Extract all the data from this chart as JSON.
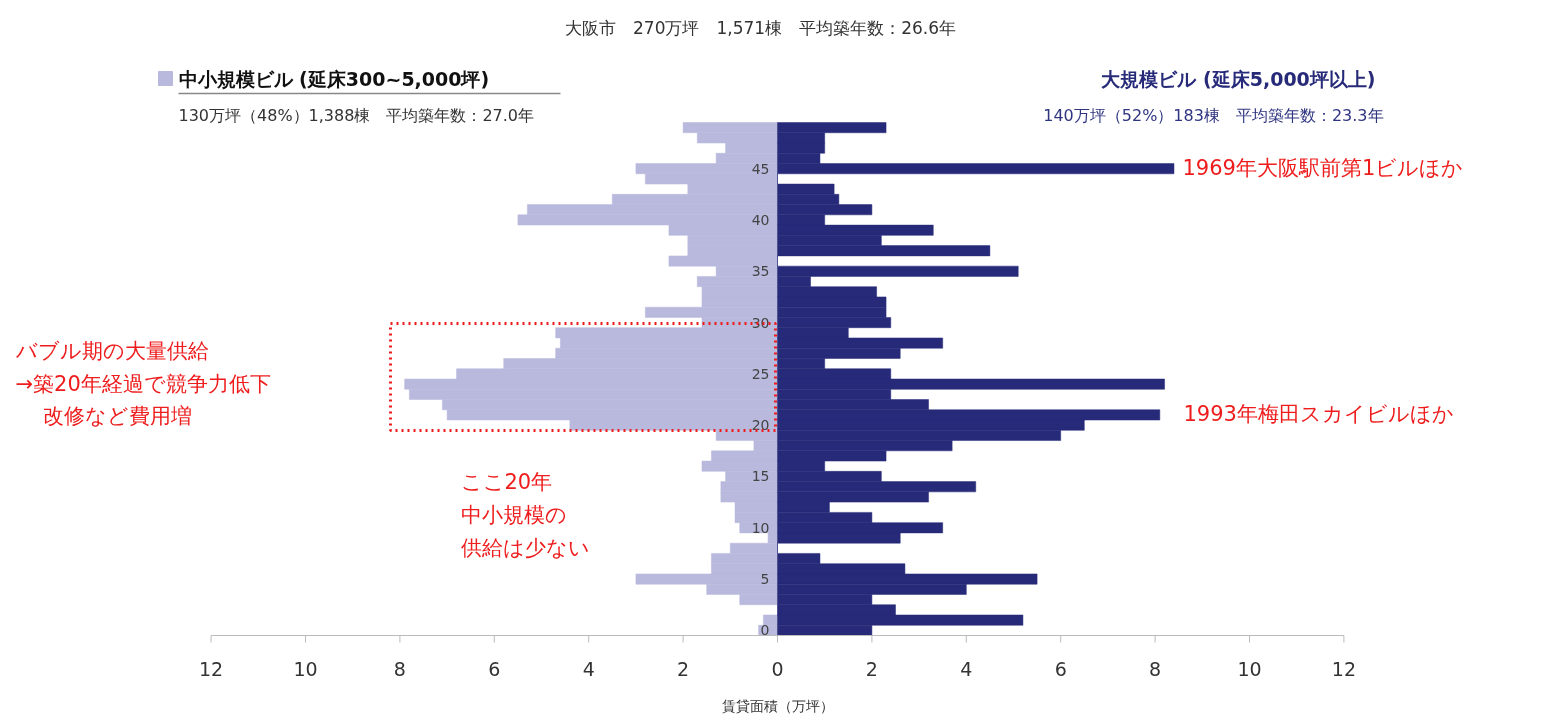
{
  "chart_data": {
    "type": "bar",
    "orientation": "horizontal",
    "stacked": true,
    "title": "大阪市　270万坪　1,571棟　平均築年数：26.6年",
    "xlabel": "賃貸面積（万坪）",
    "categories": [
      null,
      null,
      null,
      null,
      "45",
      null,
      null,
      null,
      null,
      "40",
      null,
      null,
      null,
      null,
      "35",
      null,
      null,
      null,
      null,
      "30",
      null,
      null,
      null,
      null,
      "25",
      null,
      null,
      null,
      null,
      "20",
      null,
      null,
      null,
      null,
      "15",
      null,
      null,
      null,
      null,
      "10",
      null,
      null,
      null,
      null,
      "5",
      null,
      null,
      null,
      null,
      "0"
    ],
    "series": [
      {
        "name": "中小規模ビル (延床300~5,000坪)",
        "color": "#b8b9dd",
        "values": [
          -2.0,
          -1.7,
          -1.1,
          -1.3,
          -3.0,
          -2.8,
          -1.9,
          -3.5,
          -5.3,
          -5.5,
          -2.3,
          -1.9,
          -1.9,
          -2.3,
          -1.3,
          -1.7,
          -1.6,
          -1.6,
          -2.8,
          -1.6,
          -4.7,
          -4.6,
          -4.7,
          -5.8,
          -6.8,
          -7.9,
          -7.8,
          -7.1,
          -7.0,
          -4.4,
          -1.3,
          -0.5,
          -1.4,
          -1.6,
          -1.1,
          -1.2,
          -1.2,
          -0.9,
          -0.9,
          -0.8,
          -0.2,
          -1.0,
          -1.4,
          -1.4,
          -3.0,
          -1.5,
          -0.8,
          0,
          -0.3,
          -0.4
        ]
      },
      {
        "name": "大規模ビル (延床5,000坪以上)",
        "color": "#262a78",
        "values": [
          2.3,
          1.0,
          1.0,
          0.9,
          8.4,
          0,
          1.2,
          1.3,
          2.0,
          1.0,
          3.3,
          2.2,
          4.5,
          0,
          5.1,
          0.7,
          2.1,
          2.3,
          2.3,
          2.4,
          1.5,
          3.5,
          2.6,
          1.0,
          2.4,
          8.2,
          2.4,
          3.2,
          8.1,
          6.5,
          6.0,
          3.7,
          2.3,
          1.0,
          2.2,
          4.2,
          3.2,
          1.1,
          2.0,
          3.5,
          2.6,
          0,
          0.9,
          2.7,
          5.5,
          4.0,
          2.0,
          2.5,
          5.2,
          2.0
        ]
      }
    ],
    "xlim": [
      -12,
      12
    ],
    "xticks": [
      {
        "value": -12,
        "label": "12"
      },
      {
        "value": -10,
        "label": "10"
      },
      {
        "value": -8,
        "label": "8"
      },
      {
        "value": -6,
        "label": "6"
      },
      {
        "value": -4,
        "label": "4"
      },
      {
        "value": -2,
        "label": "2"
      },
      0,
      2,
      4,
      6,
      8,
      10,
      12
    ],
    "annotations": [
      "130万坪（48%）1,388棟　平均築年数：27.0年",
      "140万坪（52%）183棟　平均築年数：23.3年",
      "1969年大阪駅前第1ビルほか",
      "1993年梅田スカイビルほか",
      "バブル期の大量供給",
      "→築20年経過で競争力低下",
      "改修など費用増",
      "ここ20年",
      "中小規模の",
      "供給は少ない"
    ],
    "grid": false
  }
}
